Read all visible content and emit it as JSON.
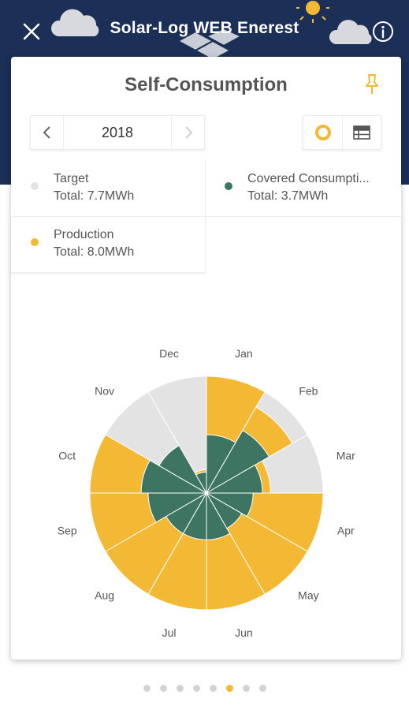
{
  "header": {
    "title": "Solar-Log WEB Enerest",
    "close_icon": "close-icon",
    "info_icon": "info-icon"
  },
  "card": {
    "title": "Self-Consumption",
    "pin_icon": "pin-icon",
    "year_nav": {
      "year": "2018",
      "prev_icon": "chevron-left-icon",
      "next_icon": "chevron-right-icon"
    },
    "view_toggle": {
      "active": "donut",
      "donut_icon": "donut-chart-icon",
      "table_icon": "table-icon"
    }
  },
  "legend": [
    {
      "name": "Target",
      "total": "Total: 7.7MWh",
      "color": "#e3e3e3"
    },
    {
      "name": "Covered Consumpti...",
      "total": "Total: 3.7MWh",
      "color": "#3e7562"
    },
    {
      "name": "Production",
      "total": "Total: 8.0MWh",
      "color": "#f3b935"
    }
  ],
  "colors": {
    "header_bg": "#1b2f57",
    "target": "#e3e3e3",
    "production": "#f3b935",
    "covered": "#3e7562",
    "pager_active": "#f3b935",
    "pager_inactive": "#d3d3d3"
  },
  "chart_data": {
    "type": "polar-area",
    "categories": [
      "Jan",
      "Feb",
      "Mar",
      "Apr",
      "May",
      "Jun",
      "Jul",
      "Aug",
      "Sep",
      "Oct",
      "Nov",
      "Dec"
    ],
    "series": [
      {
        "name": "Target",
        "values": [
          1.0,
          1.0,
          1.0,
          1.0,
          1.0,
          1.0,
          1.0,
          1.0,
          1.0,
          1.0,
          1.0,
          1.0
        ]
      },
      {
        "name": "Production",
        "values": [
          1.0,
          0.85,
          0.55,
          1.0,
          1.0,
          1.0,
          1.0,
          1.0,
          1.0,
          1.0,
          0.45,
          0.2
        ]
      },
      {
        "name": "Covered Consumpti...",
        "values": [
          0.5,
          0.62,
          0.48,
          0.4,
          0.35,
          0.4,
          0.4,
          0.4,
          0.5,
          0.56,
          0.47,
          0.18
        ]
      }
    ],
    "axis": "none",
    "grid": false,
    "legend": "top"
  },
  "pager": {
    "count": 8,
    "active_index": 5
  }
}
